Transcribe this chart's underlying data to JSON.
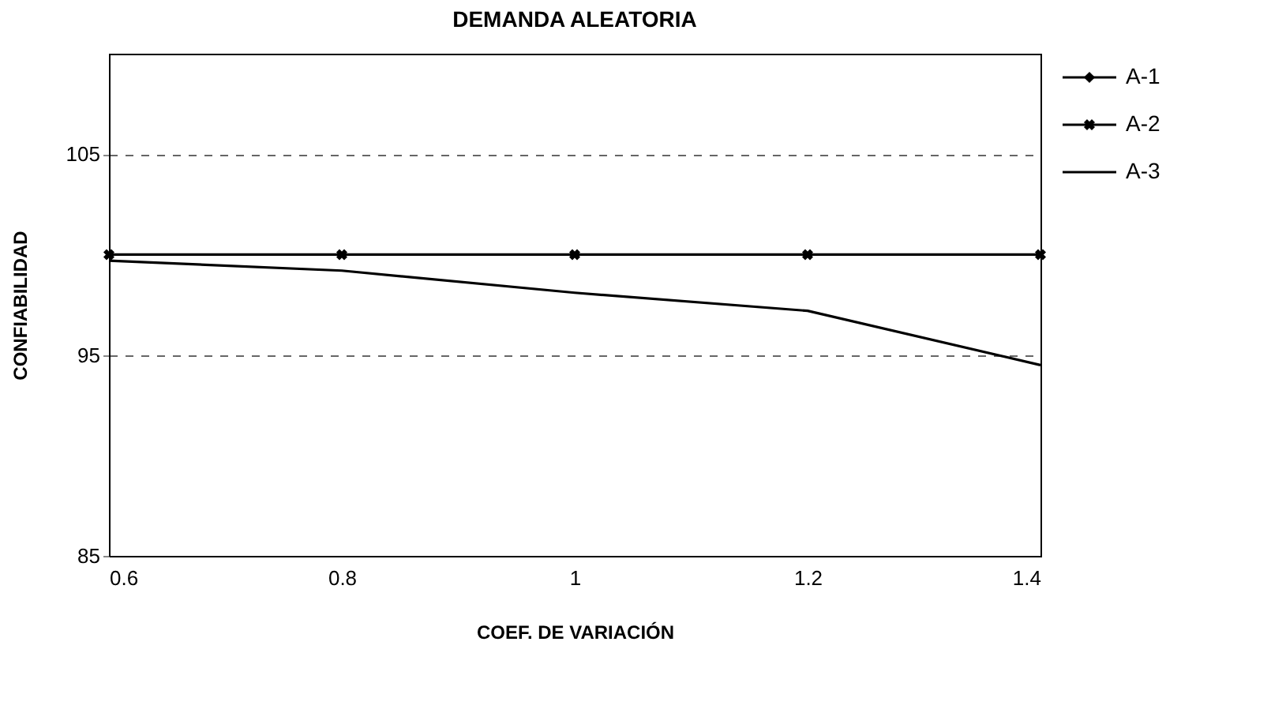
{
  "chart_data": {
    "type": "line",
    "title": "DEMANDA ALEATORIA",
    "xlabel": "COEF. DE VARIACIÓN",
    "ylabel": "CONFIABILIDAD",
    "x": [
      0.6,
      0.8,
      1,
      1.2,
      1.4
    ],
    "series": [
      {
        "name": "A-1",
        "color": "#000000",
        "marker": "diamond",
        "values": [
          null,
          null,
          null,
          null,
          null
        ]
      },
      {
        "name": "A-2",
        "color": "#000000",
        "marker": "cross",
        "values": [
          100,
          100,
          100,
          100,
          100
        ]
      },
      {
        "name": "A-3",
        "color": "#000000",
        "marker": "none",
        "values": [
          99.7,
          99.2,
          98.1,
          97.2,
          94.5
        ]
      }
    ],
    "xlim": [
      0.6,
      1.4
    ],
    "xticks": [
      {
        "value": 0.6,
        "label": "0.6"
      },
      {
        "value": 0.8,
        "label": "0.8"
      },
      1,
      {
        "value": 1.2,
        "label": "1.2"
      },
      {
        "value": 1.4,
        "label": "1.4"
      }
    ],
    "ylim": [
      85,
      110
    ],
    "yticks": [
      85,
      95,
      105
    ],
    "grid": "y",
    "legend": "right",
    "line_style": "solid"
  }
}
